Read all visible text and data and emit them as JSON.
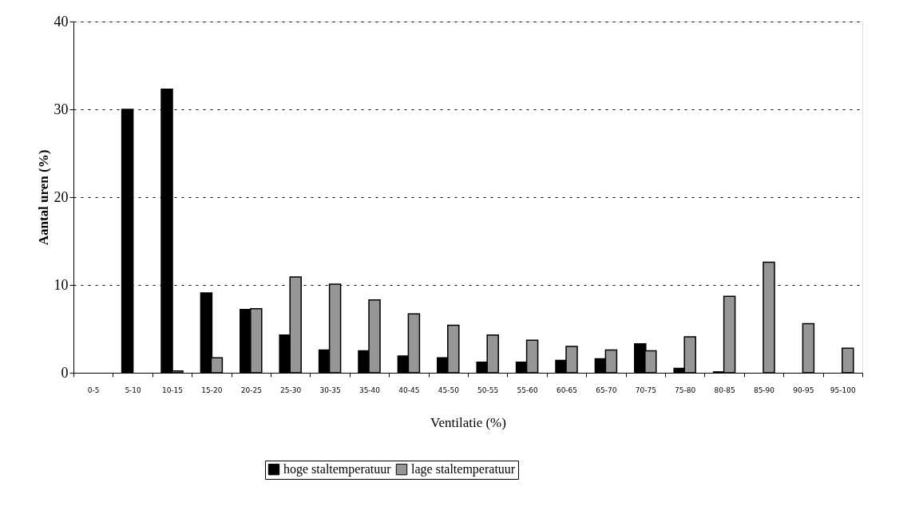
{
  "chart_data": {
    "type": "bar",
    "xlabel": "Ventilatie (%)",
    "ylabel": "Aantal uren (%)",
    "categories": [
      "0-5",
      "5-10",
      "10-15",
      "15-20",
      "20-25",
      "25-30",
      "30-35",
      "35-40",
      "40-45",
      "45-50",
      "50-55",
      "55-60",
      "60-65",
      "65-70",
      "70-75",
      "75-80",
      "80-85",
      "85-90",
      "90-95",
      "95-100"
    ],
    "series": [
      {
        "name": "hoge staltemperatuur",
        "color": "#000000",
        "values": [
          0,
          30,
          32.3,
          9.1,
          7.2,
          4.3,
          2.6,
          2.5,
          1.9,
          1.7,
          1.2,
          1.2,
          1.4,
          1.6,
          3.3,
          0.5,
          0.1,
          0,
          0,
          0
        ]
      },
      {
        "name": "lage staltemperatuur",
        "color": "#969696",
        "values": [
          0,
          0,
          0.2,
          1.7,
          7.3,
          10.9,
          10.1,
          8.3,
          6.7,
          5.4,
          4.3,
          3.7,
          3.0,
          2.6,
          2.5,
          4.1,
          8.7,
          12.6,
          5.6,
          2.8
        ]
      }
    ],
    "ylim": [
      0,
      40
    ],
    "yticks": [
      0,
      10,
      20,
      30,
      40
    ],
    "grid": "y",
    "legend": "bottom"
  }
}
